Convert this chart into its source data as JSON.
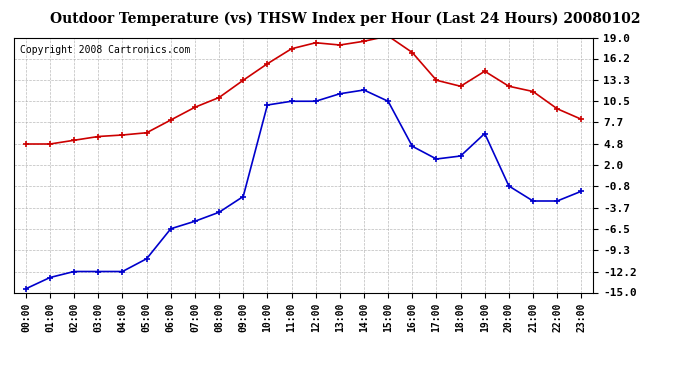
{
  "title": "Outdoor Temperature (vs) THSW Index per Hour (Last 24 Hours) 20080102",
  "copyright": "Copyright 2008 Cartronics.com",
  "hours": [
    "00:00",
    "01:00",
    "02:00",
    "03:00",
    "04:00",
    "05:00",
    "06:00",
    "07:00",
    "08:00",
    "09:00",
    "10:00",
    "11:00",
    "12:00",
    "13:00",
    "14:00",
    "15:00",
    "16:00",
    "17:00",
    "18:00",
    "19:00",
    "20:00",
    "21:00",
    "22:00",
    "23:00"
  ],
  "temp_red": [
    4.8,
    4.8,
    5.3,
    5.8,
    6.0,
    6.3,
    8.0,
    9.7,
    11.0,
    13.3,
    15.5,
    17.5,
    18.3,
    18.0,
    18.5,
    19.2,
    17.0,
    13.3,
    12.5,
    14.5,
    12.5,
    11.8,
    9.5,
    8.1
  ],
  "temp_blue": [
    -14.5,
    -13.0,
    -12.2,
    -12.2,
    -12.2,
    -10.5,
    -6.5,
    -5.5,
    -4.3,
    -2.2,
    10.0,
    10.5,
    10.5,
    11.5,
    12.0,
    10.5,
    4.5,
    2.8,
    3.2,
    6.2,
    -0.8,
    -2.8,
    -2.8,
    -1.5
  ],
  "yticks": [
    19.0,
    16.2,
    13.3,
    10.5,
    7.7,
    4.8,
    2.0,
    -0.8,
    -3.7,
    -6.5,
    -9.3,
    -12.2,
    -15.0
  ],
  "ymin": -15.0,
  "ymax": 19.0,
  "red_color": "#cc0000",
  "blue_color": "#0000cc",
  "background_color": "#ffffff",
  "grid_color": "#aaaaaa",
  "title_fontsize": 10,
  "copyright_fontsize": 7,
  "tick_fontsize": 8,
  "xtick_fontsize": 7
}
